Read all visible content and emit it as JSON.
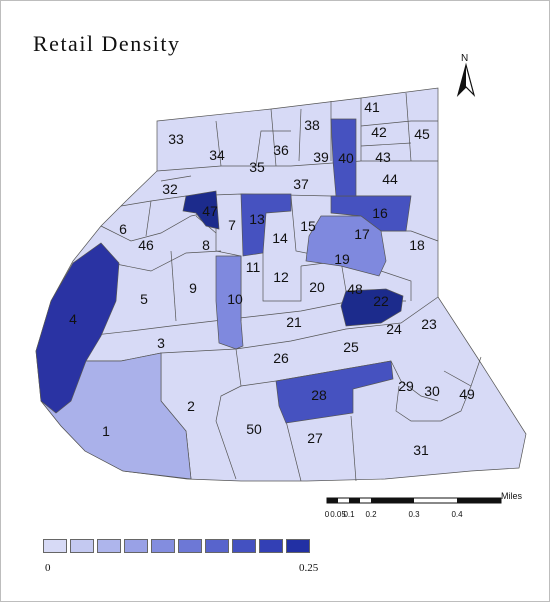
{
  "title": "Retail Density",
  "north_label": "N",
  "scale": {
    "ticks": [
      "0",
      "0.05",
      "0.1",
      "0.2",
      "0.3",
      "0.4"
    ],
    "unit": "Miles"
  },
  "legend": {
    "min_label": "0",
    "max_label": "0.25",
    "colors": [
      "#d7daf6",
      "#c4c9f1",
      "#aeb5ec",
      "#99a1e6",
      "#838ddf",
      "#6d78d6",
      "#5864cc",
      "#4451c1",
      "#3340b5",
      "#2230a4"
    ]
  },
  "colors": {
    "base": "#d7daf6",
    "light": "#aab1ea",
    "mid": "#7f89de",
    "darkmid": "#4652c0",
    "dark": "#2a33a3",
    "darkest": "#1c2b8c",
    "stroke": "#555555"
  },
  "zones": [
    {
      "id": "1",
      "label": "1",
      "level": "light"
    },
    {
      "id": "2",
      "label": "2",
      "level": "base"
    },
    {
      "id": "3",
      "label": "3",
      "level": "base"
    },
    {
      "id": "4",
      "label": "4",
      "level": "dark"
    },
    {
      "id": "5",
      "label": "5",
      "level": "base"
    },
    {
      "id": "6",
      "label": "6",
      "level": "base"
    },
    {
      "id": "7",
      "label": "7",
      "level": "base"
    },
    {
      "id": "8",
      "label": "8",
      "level": "base"
    },
    {
      "id": "9",
      "label": "9",
      "level": "base"
    },
    {
      "id": "10",
      "label": "10",
      "level": "mid"
    },
    {
      "id": "11",
      "label": "11",
      "level": "base"
    },
    {
      "id": "12",
      "label": "12",
      "level": "base"
    },
    {
      "id": "13",
      "label": "13",
      "level": "darkmid"
    },
    {
      "id": "14",
      "label": "14",
      "level": "base"
    },
    {
      "id": "15",
      "label": "15",
      "level": "base"
    },
    {
      "id": "16",
      "label": "16",
      "level": "darkmid"
    },
    {
      "id": "17",
      "label": "17",
      "level": "base"
    },
    {
      "id": "18",
      "label": "18",
      "level": "base"
    },
    {
      "id": "19",
      "label": "19",
      "level": "mid"
    },
    {
      "id": "20",
      "label": "20",
      "level": "base"
    },
    {
      "id": "21",
      "label": "21",
      "level": "base"
    },
    {
      "id": "22",
      "label": "22",
      "level": "darkest"
    },
    {
      "id": "23",
      "label": "23",
      "level": "base"
    },
    {
      "id": "24",
      "label": "24",
      "level": "base"
    },
    {
      "id": "25",
      "label": "25",
      "level": "base"
    },
    {
      "id": "26",
      "label": "26",
      "level": "base"
    },
    {
      "id": "27",
      "label": "27",
      "level": "base"
    },
    {
      "id": "28",
      "label": "28",
      "level": "darkmid"
    },
    {
      "id": "29",
      "label": "29",
      "level": "base"
    },
    {
      "id": "30",
      "label": "30",
      "level": "base"
    },
    {
      "id": "31",
      "label": "31",
      "level": "base"
    },
    {
      "id": "32",
      "label": "32",
      "level": "base"
    },
    {
      "id": "33",
      "label": "33",
      "level": "base"
    },
    {
      "id": "34",
      "label": "34",
      "level": "base"
    },
    {
      "id": "35",
      "label": "35",
      "level": "base"
    },
    {
      "id": "36",
      "label": "36",
      "level": "base"
    },
    {
      "id": "37",
      "label": "37",
      "level": "base"
    },
    {
      "id": "38",
      "label": "38",
      "level": "base"
    },
    {
      "id": "39",
      "label": "39",
      "level": "base"
    },
    {
      "id": "40",
      "label": "40",
      "level": "darkmid"
    },
    {
      "id": "41",
      "label": "41",
      "level": "base"
    },
    {
      "id": "42",
      "label": "42",
      "level": "base"
    },
    {
      "id": "43",
      "label": "43",
      "level": "base"
    },
    {
      "id": "44",
      "label": "44",
      "level": "base"
    },
    {
      "id": "45",
      "label": "45",
      "level": "base"
    },
    {
      "id": "46",
      "label": "46",
      "level": "base"
    },
    {
      "id": "47",
      "label": "47",
      "level": "darkest"
    },
    {
      "id": "48",
      "label": "48",
      "level": "base"
    },
    {
      "id": "49",
      "label": "49",
      "level": "base"
    },
    {
      "id": "50",
      "label": "50",
      "level": "base"
    }
  ]
}
